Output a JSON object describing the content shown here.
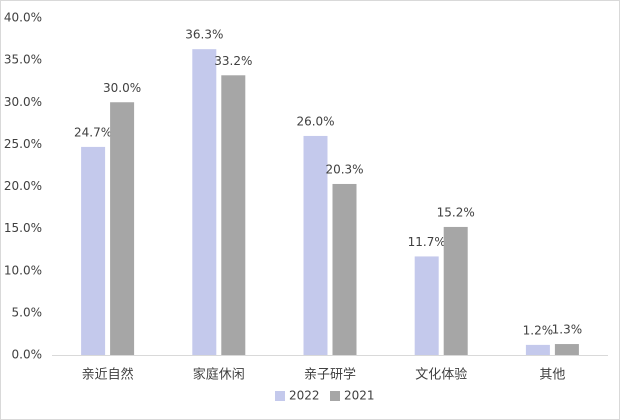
{
  "chart_data": {
    "type": "bar",
    "categories": [
      "亲近自然",
      "家庭休闲",
      "亲子研学",
      "文化体验",
      "其他"
    ],
    "series": [
      {
        "name": "2022",
        "color": "#c4c9ec",
        "values": [
          24.7,
          36.3,
          26.0,
          11.7,
          1.2
        ],
        "value_labels": [
          "24.7%",
          "36.3%",
          "26.0%",
          "11.7%",
          "1.2%"
        ]
      },
      {
        "name": "2021",
        "color": "#a6a6a6",
        "values": [
          30.0,
          33.2,
          20.3,
          15.2,
          1.3
        ],
        "value_labels": [
          "30.0%",
          "33.2%",
          "20.3%",
          "15.2%",
          "1.3%"
        ]
      }
    ],
    "ylim": [
      0,
      40
    ],
    "yticks": [
      {
        "value": 0,
        "label": "0.0%"
      },
      {
        "value": 5,
        "label": "5.0%"
      },
      {
        "value": 10,
        "label": "10.0%"
      },
      {
        "value": 15,
        "label": "15.0%"
      },
      {
        "value": 20,
        "label": "20.0%"
      },
      {
        "value": 25,
        "label": "25.0%"
      },
      {
        "value": 30,
        "label": "30.0%"
      },
      {
        "value": 35,
        "label": "35.0%"
      },
      {
        "value": 40,
        "label": "40.0%"
      }
    ],
    "grid": false,
    "legend": "bottom"
  }
}
